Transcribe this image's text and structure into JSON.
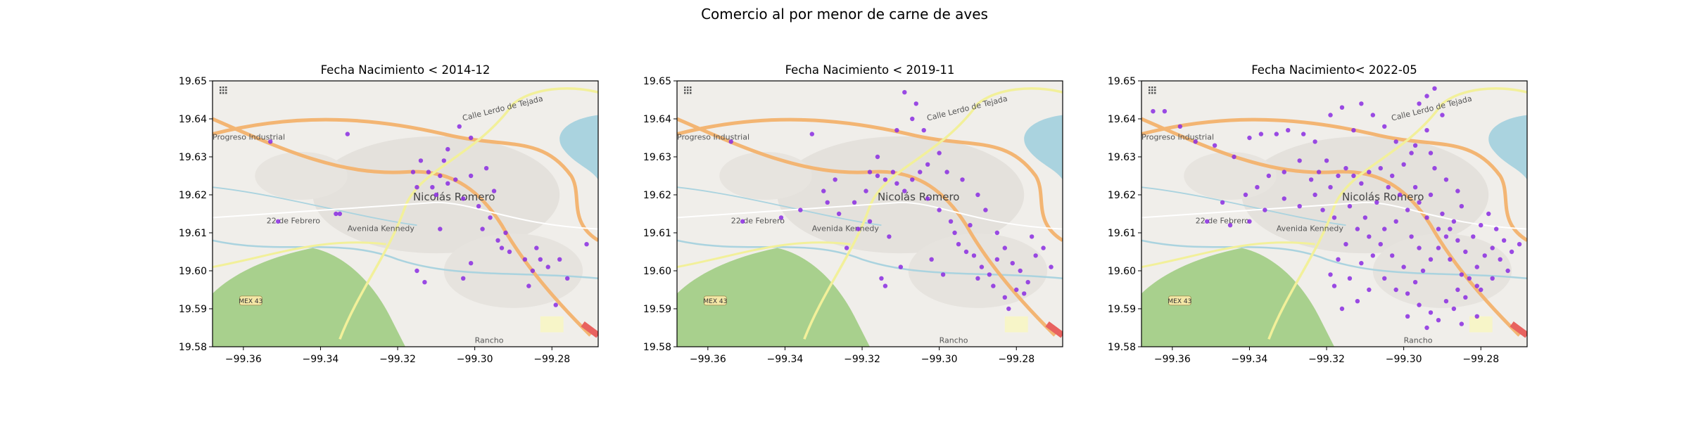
{
  "figure": {
    "suptitle": "Comercio al por menor de carne de aves"
  },
  "map_labels": {
    "town": "Nicolás Romero",
    "progreso": "Progreso Industrial",
    "febrero": "22 de Febrero",
    "avenida": "Avenida Kennedy",
    "calle": "Calle Lerdo de Tejada",
    "mex": "MEX 43",
    "rancho": "Rancho"
  },
  "colors": {
    "points": "#8a2be2",
    "water": "#aad3df",
    "park": "#a8d08d",
    "road_major": "#f3b573",
    "road_secondary": "#f2f09a",
    "land": "#f0eeea"
  },
  "chart_data": [
    {
      "type": "scatter",
      "title": "Fecha Nacimiento < 2014-12",
      "xlim": [
        -99.368,
        -99.268
      ],
      "ylim": [
        19.58,
        19.65
      ],
      "xticks": [
        -99.36,
        -99.34,
        -99.32,
        -99.3,
        -99.28
      ],
      "yticks": [
        19.58,
        19.59,
        19.6,
        19.61,
        19.62,
        19.63,
        19.64,
        19.65
      ],
      "points": [
        [
          -99.353,
          19.634
        ],
        [
          -99.333,
          19.636
        ],
        [
          -99.351,
          19.613
        ],
        [
          -99.335,
          19.615
        ],
        [
          -99.336,
          19.615
        ],
        [
          -99.314,
          19.629
        ],
        [
          -99.312,
          19.626
        ],
        [
          -99.309,
          19.625
        ],
        [
          -99.307,
          19.623
        ],
        [
          -99.305,
          19.624
        ],
        [
          -99.311,
          19.622
        ],
        [
          -99.31,
          19.62
        ],
        [
          -99.316,
          19.626
        ],
        [
          -99.315,
          19.622
        ],
        [
          -99.307,
          19.632
        ],
        [
          -99.304,
          19.638
        ],
        [
          -99.301,
          19.635
        ],
        [
          -99.308,
          19.629
        ],
        [
          -99.301,
          19.625
        ],
        [
          -99.297,
          19.627
        ],
        [
          -99.295,
          19.621
        ],
        [
          -99.303,
          19.619
        ],
        [
          -99.299,
          19.617
        ],
        [
          -99.296,
          19.614
        ],
        [
          -99.298,
          19.611
        ],
        [
          -99.294,
          19.608
        ],
        [
          -99.293,
          19.606
        ],
        [
          -99.291,
          19.605
        ],
        [
          -99.287,
          19.603
        ],
        [
          -99.285,
          19.6
        ],
        [
          -99.284,
          19.606
        ],
        [
          -99.283,
          19.603
        ],
        [
          -99.281,
          19.601
        ],
        [
          -99.278,
          19.603
        ],
        [
          -99.276,
          19.598
        ],
        [
          -99.286,
          19.596
        ],
        [
          -99.301,
          19.602
        ],
        [
          -99.303,
          19.598
        ],
        [
          -99.315,
          19.6
        ],
        [
          -99.313,
          19.597
        ],
        [
          -99.271,
          19.607
        ],
        [
          -99.279,
          19.591
        ],
        [
          -99.292,
          19.61
        ],
        [
          -99.309,
          19.611
        ]
      ]
    },
    {
      "type": "scatter",
      "title": "Fecha Nacimiento < 2019-11",
      "xlim": [
        -99.368,
        -99.268
      ],
      "ylim": [
        19.58,
        19.65
      ],
      "xticks": [
        -99.36,
        -99.34,
        -99.32,
        -99.3,
        -99.28
      ],
      "yticks": [
        19.58,
        19.59,
        19.6,
        19.61,
        19.62,
        19.63,
        19.64,
        19.65
      ],
      "points": [
        [
          -99.354,
          19.634
        ],
        [
          -99.333,
          19.636
        ],
        [
          -99.351,
          19.613
        ],
        [
          -99.341,
          19.614
        ],
        [
          -99.336,
          19.616
        ],
        [
          -99.329,
          19.618
        ],
        [
          -99.326,
          19.615
        ],
        [
          -99.321,
          19.611
        ],
        [
          -99.318,
          19.626
        ],
        [
          -99.316,
          19.625
        ],
        [
          -99.314,
          19.624
        ],
        [
          -99.312,
          19.626
        ],
        [
          -99.311,
          19.623
        ],
        [
          -99.309,
          19.621
        ],
        [
          -99.307,
          19.624
        ],
        [
          -99.305,
          19.626
        ],
        [
          -99.303,
          19.628
        ],
        [
          -99.3,
          19.631
        ],
        [
          -99.304,
          19.637
        ],
        [
          -99.306,
          19.644
        ],
        [
          -99.309,
          19.647
        ],
        [
          -99.311,
          19.637
        ],
        [
          -99.316,
          19.63
        ],
        [
          -99.319,
          19.621
        ],
        [
          -99.322,
          19.618
        ],
        [
          -99.33,
          19.621
        ],
        [
          -99.327,
          19.624
        ],
        [
          -99.303,
          19.619
        ],
        [
          -99.3,
          19.616
        ],
        [
          -99.297,
          19.613
        ],
        [
          -99.296,
          19.61
        ],
        [
          -99.295,
          19.607
        ],
        [
          -99.293,
          19.605
        ],
        [
          -99.291,
          19.604
        ],
        [
          -99.289,
          19.601
        ],
        [
          -99.287,
          19.599
        ],
        [
          -99.285,
          19.603
        ],
        [
          -99.283,
          19.606
        ],
        [
          -99.281,
          19.602
        ],
        [
          -99.279,
          19.6
        ],
        [
          -99.277,
          19.597
        ],
        [
          -99.275,
          19.604
        ],
        [
          -99.273,
          19.606
        ],
        [
          -99.271,
          19.601
        ],
        [
          -99.28,
          19.595
        ],
        [
          -99.283,
          19.593
        ],
        [
          -99.286,
          19.596
        ],
        [
          -99.29,
          19.598
        ],
        [
          -99.299,
          19.599
        ],
        [
          -99.302,
          19.603
        ],
        [
          -99.31,
          19.601
        ],
        [
          -99.315,
          19.598
        ],
        [
          -99.314,
          19.596
        ],
        [
          -99.282,
          19.59
        ],
        [
          -99.278,
          19.594
        ],
        [
          -99.298,
          19.626
        ],
        [
          -99.294,
          19.624
        ],
        [
          -99.29,
          19.62
        ],
        [
          -99.288,
          19.616
        ],
        [
          -99.276,
          19.609
        ],
        [
          -99.285,
          19.61
        ],
        [
          -99.292,
          19.612
        ],
        [
          -99.313,
          19.609
        ],
        [
          -99.318,
          19.613
        ],
        [
          -99.324,
          19.606
        ],
        [
          -99.307,
          19.64
        ]
      ]
    },
    {
      "type": "scatter",
      "title": "Fecha Nacimiento< 2022-05",
      "xlim": [
        -99.368,
        -99.268
      ],
      "ylim": [
        19.58,
        19.65
      ],
      "xticks": [
        -99.36,
        -99.34,
        -99.32,
        -99.3,
        -99.28
      ],
      "yticks": [
        19.58,
        19.59,
        19.6,
        19.61,
        19.62,
        19.63,
        19.64,
        19.65
      ],
      "points": [
        [
          -99.365,
          19.642
        ],
        [
          -99.362,
          19.642
        ],
        [
          -99.358,
          19.638
        ],
        [
          -99.354,
          19.634
        ],
        [
          -99.349,
          19.633
        ],
        [
          -99.344,
          19.63
        ],
        [
          -99.34,
          19.635
        ],
        [
          -99.337,
          19.636
        ],
        [
          -99.333,
          19.636
        ],
        [
          -99.33,
          19.637
        ],
        [
          -99.326,
          19.636
        ],
        [
          -99.323,
          19.634
        ],
        [
          -99.327,
          19.629
        ],
        [
          -99.331,
          19.626
        ],
        [
          -99.335,
          19.625
        ],
        [
          -99.338,
          19.622
        ],
        [
          -99.341,
          19.62
        ],
        [
          -99.347,
          19.618
        ],
        [
          -99.351,
          19.613
        ],
        [
          -99.345,
          19.612
        ],
        [
          -99.34,
          19.613
        ],
        [
          -99.336,
          19.616
        ],
        [
          -99.331,
          19.619
        ],
        [
          -99.327,
          19.617
        ],
        [
          -99.323,
          19.62
        ],
        [
          -99.319,
          19.622
        ],
        [
          -99.317,
          19.625
        ],
        [
          -99.315,
          19.627
        ],
        [
          -99.313,
          19.625
        ],
        [
          -99.311,
          19.623
        ],
        [
          -99.309,
          19.626
        ],
        [
          -99.306,
          19.627
        ],
        [
          -99.303,
          19.625
        ],
        [
          -99.3,
          19.628
        ],
        [
          -99.298,
          19.631
        ],
        [
          -99.302,
          19.634
        ],
        [
          -99.305,
          19.638
        ],
        [
          -99.308,
          19.641
        ],
        [
          -99.311,
          19.644
        ],
        [
          -99.316,
          19.643
        ],
        [
          -99.319,
          19.641
        ],
        [
          -99.313,
          19.637
        ],
        [
          -99.296,
          19.644
        ],
        [
          -99.294,
          19.646
        ],
        [
          -99.292,
          19.648
        ],
        [
          -99.29,
          19.641
        ],
        [
          -99.294,
          19.637
        ],
        [
          -99.297,
          19.633
        ],
        [
          -99.293,
          19.631
        ],
        [
          -99.292,
          19.627
        ],
        [
          -99.289,
          19.624
        ],
        [
          -99.286,
          19.621
        ],
        [
          -99.285,
          19.617
        ],
        [
          -99.287,
          19.613
        ],
        [
          -99.289,
          19.609
        ],
        [
          -99.291,
          19.606
        ],
        [
          -99.293,
          19.603
        ],
        [
          -99.295,
          19.6
        ],
        [
          -99.297,
          19.597
        ],
        [
          -99.299,
          19.594
        ],
        [
          -99.296,
          19.591
        ],
        [
          -99.293,
          19.589
        ],
        [
          -99.289,
          19.592
        ],
        [
          -99.286,
          19.595
        ],
        [
          -99.283,
          19.598
        ],
        [
          -99.281,
          19.601
        ],
        [
          -99.279,
          19.604
        ],
        [
          -99.277,
          19.606
        ],
        [
          -99.275,
          19.603
        ],
        [
          -99.273,
          19.6
        ],
        [
          -99.277,
          19.598
        ],
        [
          -99.28,
          19.595
        ],
        [
          -99.284,
          19.593
        ],
        [
          -99.287,
          19.59
        ],
        [
          -99.291,
          19.587
        ],
        [
          -99.294,
          19.585
        ],
        [
          -99.3,
          19.601
        ],
        [
          -99.303,
          19.604
        ],
        [
          -99.306,
          19.607
        ],
        [
          -99.309,
          19.609
        ],
        [
          -99.312,
          19.611
        ],
        [
          -99.315,
          19.607
        ],
        [
          -99.317,
          19.603
        ],
        [
          -99.319,
          19.599
        ],
        [
          -99.318,
          19.596
        ],
        [
          -99.314,
          19.598
        ],
        [
          -99.311,
          19.602
        ],
        [
          -99.308,
          19.604
        ],
        [
          -99.305,
          19.611
        ],
        [
          -99.302,
          19.613
        ],
        [
          -99.299,
          19.616
        ],
        [
          -99.296,
          19.618
        ],
        [
          -99.293,
          19.62
        ],
        [
          -99.29,
          19.615
        ],
        [
          -99.288,
          19.611
        ],
        [
          -99.286,
          19.608
        ],
        [
          -99.284,
          19.605
        ],
        [
          -99.282,
          19.609
        ],
        [
          -99.28,
          19.612
        ],
        [
          -99.278,
          19.615
        ],
        [
          -99.276,
          19.611
        ],
        [
          -99.274,
          19.608
        ],
        [
          -99.272,
          19.605
        ],
        [
          -99.27,
          19.607
        ],
        [
          -99.281,
          19.588
        ],
        [
          -99.285,
          19.586
        ],
        [
          -99.298,
          19.609
        ],
        [
          -99.301,
          19.62
        ],
        [
          -99.304,
          19.622
        ],
        [
          -99.307,
          19.618
        ],
        [
          -99.31,
          19.614
        ],
        [
          -99.32,
          19.629
        ],
        [
          -99.322,
          19.626
        ],
        [
          -99.324,
          19.624
        ],
        [
          -99.321,
          19.616
        ],
        [
          -99.318,
          19.614
        ],
        [
          -99.314,
          19.617
        ],
        [
          -99.297,
          19.622
        ],
        [
          -99.294,
          19.614
        ],
        [
          -99.291,
          19.611
        ],
        [
          -99.288,
          19.603
        ],
        [
          -99.285,
          19.599
        ],
        [
          -99.281,
          19.596
        ],
        [
          -99.302,
          19.595
        ],
        [
          -99.305,
          19.598
        ],
        [
          -99.309,
          19.595
        ],
        [
          -99.312,
          19.592
        ],
        [
          -99.316,
          19.59
        ],
        [
          -99.299,
          19.588
        ],
        [
          -99.296,
          19.606
        ]
      ]
    }
  ]
}
